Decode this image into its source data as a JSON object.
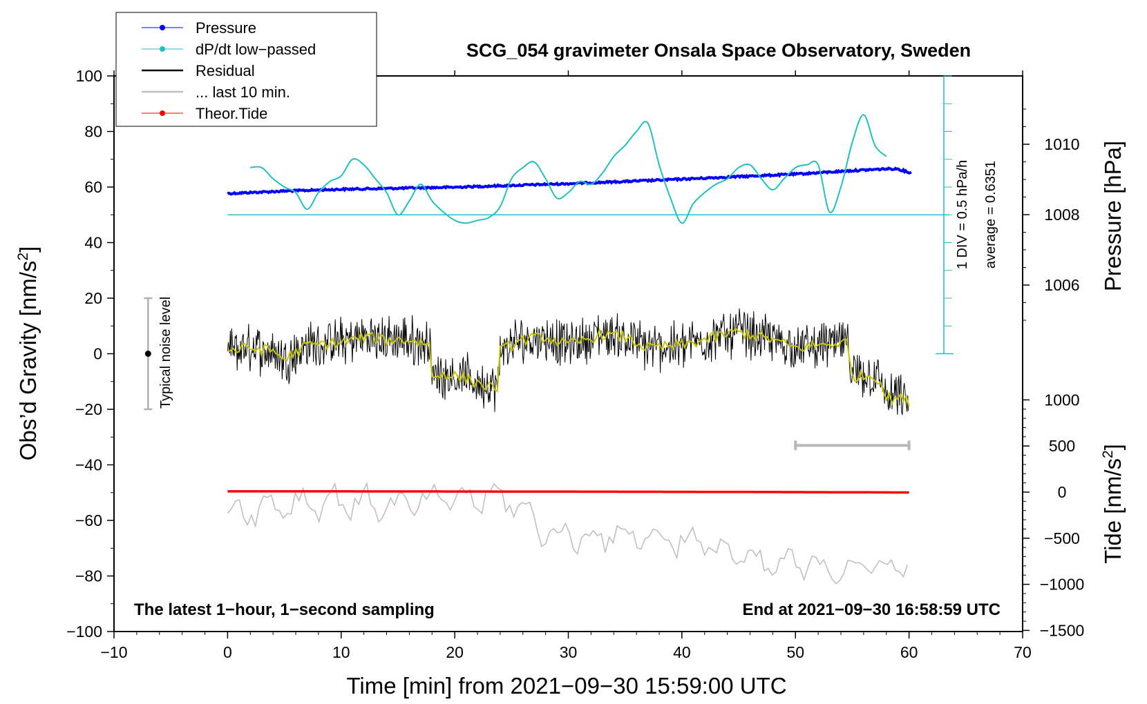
{
  "chart_data": {
    "type": "line",
    "title": "SCG_054 gravimeter Onsala Space Observatory, Sweden",
    "xlabel": "Time [min] from 2021−09−30 15:59:00 UTC",
    "ylabel_left": "Obs’d Gravity [nm/s",
    "ylabel_left_sup": "2",
    "ylabel_left_close": "]",
    "ylabel_pressure": "Pressure [hPa]",
    "ylabel_tide": "Tide [nm/s",
    "ylabel_tide_sup": "2",
    "ylabel_tide_close": "]",
    "xlim": [
      -10,
      70
    ],
    "ylim": [
      -100,
      100
    ],
    "x_ticks": [
      {
        "v": -10,
        "label": "−10"
      },
      {
        "v": 0,
        "label": "0"
      },
      {
        "v": 10,
        "label": "10"
      },
      {
        "v": 20,
        "label": "20"
      },
      {
        "v": 30,
        "label": "30"
      },
      {
        "v": 40,
        "label": "40"
      },
      {
        "v": 50,
        "label": "50"
      },
      {
        "v": 60,
        "label": "60"
      },
      {
        "v": 70,
        "label": "70"
      }
    ],
    "y_ticks": [
      {
        "v": 100,
        "label": "100"
      },
      {
        "v": 80,
        "label": "80"
      },
      {
        "v": 60,
        "label": "60"
      },
      {
        "v": 40,
        "label": "40"
      },
      {
        "v": 20,
        "label": "20"
      },
      {
        "v": 0,
        "label": "0"
      },
      {
        "v": -20,
        "label": "−20"
      },
      {
        "v": -40,
        "label": "−40"
      },
      {
        "v": -60,
        "label": "−60"
      },
      {
        "v": -80,
        "label": "−80"
      },
      {
        "v": -100,
        "label": "−100"
      }
    ],
    "pressure_axis": {
      "ticks": [
        {
          "v": 1010,
          "label": "1010"
        },
        {
          "v": 1008,
          "label": "1008"
        },
        {
          "v": 1006,
          "label": "1006"
        }
      ]
    },
    "tide_axis": {
      "ticks": [
        {
          "v": 1000,
          "label": "1000"
        },
        {
          "v": 500,
          "label": "500"
        },
        {
          "v": 0,
          "label": "0"
        },
        {
          "v": -500,
          "label": "−500"
        },
        {
          "v": -1000,
          "label": "−1000"
        },
        {
          "v": -1500,
          "label": "−1500"
        }
      ]
    },
    "legend": [
      {
        "label": "Pressure",
        "color": "#0000ff",
        "marker": true
      },
      {
        "label": "dP/dt low−passed",
        "color": "#00c0c0",
        "marker": true
      },
      {
        "label": "Residual",
        "color": "#000000",
        "marker": false
      },
      {
        "label": "... last 10 min.",
        "color": "#c0c0c0",
        "marker": false
      },
      {
        "label": "Theor.Tide",
        "color": "#ff0000",
        "marker": true
      }
    ],
    "dpdt_scale_label": "1 DIV = 0.5 hPa/h",
    "dpdt_average_label": "average = 0.6351",
    "dpdt_zero_level": 50,
    "noise_label": "Typical noise level",
    "noise_bar": {
      "x": -7,
      "center": 0,
      "half_range": 20
    },
    "note_left": "The latest 1−hour, 1−second sampling",
    "note_right": "End at 2021−09−30 16:58:59 UTC",
    "window_bar": {
      "x_start": 50,
      "x_end": 60,
      "y": -33
    },
    "series": [
      {
        "name": "Pressure",
        "color": "#0000ff",
        "axis": "pressure_hPa",
        "x": [
          0,
          5,
          10,
          20,
          30,
          38,
          45,
          50,
          55,
          58,
          59,
          60
        ],
        "values": [
          1008.6,
          1008.67,
          1008.72,
          1008.78,
          1008.88,
          1008.98,
          1009.08,
          1009.15,
          1009.25,
          1009.3,
          1009.3,
          1009.2
        ]
      },
      {
        "name": "dP/dt low-passed",
        "color": "#00c0c0",
        "axis": "gravity_plot_units",
        "x": [
          2,
          3,
          4,
          5,
          6,
          7,
          8,
          9,
          10,
          11,
          12,
          13,
          14,
          15,
          16,
          17,
          18,
          19,
          20,
          21,
          22,
          23,
          24,
          25,
          26,
          27,
          28,
          29,
          30,
          31,
          32,
          33,
          34,
          35,
          36,
          37,
          38,
          39,
          40,
          41,
          42,
          43,
          44,
          45,
          46,
          47,
          48,
          49,
          50,
          51,
          52,
          53,
          54,
          55,
          56,
          57,
          58
        ],
        "values": [
          67,
          67,
          63,
          60,
          58,
          52,
          58,
          62,
          64,
          70,
          68,
          63,
          58,
          50,
          55,
          61,
          55,
          51,
          48,
          47,
          48,
          49,
          53,
          63,
          67,
          69,
          63,
          56,
          58,
          62,
          61,
          65,
          71,
          75,
          80,
          83,
          68,
          56,
          47,
          54,
          58,
          61,
          63,
          67,
          68,
          63,
          59,
          63,
          67,
          68,
          68,
          51,
          60,
          76,
          86,
          75,
          71
        ]
      },
      {
        "name": "Residual",
        "color": "#000000",
        "axis": "gravity_nm_s2",
        "x": [
          0,
          2,
          4,
          5,
          7,
          10,
          12,
          14,
          16,
          17,
          17.9,
          18,
          19,
          21,
          23,
          23.9,
          24,
          26,
          28,
          30,
          33,
          35,
          37,
          40,
          43,
          45,
          48,
          50,
          52,
          54,
          54.5,
          55,
          57,
          57.5,
          58,
          59,
          60
        ],
        "values": [
          1,
          2,
          1,
          -2,
          3,
          4,
          6,
          5,
          5,
          4,
          4,
          -9,
          -7,
          -9,
          -12,
          -12,
          1,
          5,
          6,
          3,
          7,
          6,
          2,
          3,
          6,
          8,
          5,
          2,
          3,
          4,
          4,
          -8,
          -8,
          -10,
          -16,
          -16,
          -17
        ]
      },
      {
        "name": "... last 10 min.",
        "color": "#c0c0c0",
        "axis": "gravity_plot_units",
        "x": [
          0,
          5,
          10,
          15,
          20,
          25,
          26,
          28,
          30,
          35,
          40,
          45,
          46,
          50,
          55,
          60
        ],
        "values": [
          -57,
          -54,
          -53,
          -55,
          -52,
          -52,
          -57,
          -64,
          -66,
          -65,
          -67,
          -72,
          -76,
          -76,
          -77,
          -76
        ]
      },
      {
        "name": "Theor.Tide",
        "color": "#ff0000",
        "axis": "tide_nm_s2",
        "x": [
          0,
          10,
          20,
          30,
          40,
          50,
          60
        ],
        "values": [
          8,
          8,
          7,
          5,
          3,
          0,
          -4
        ]
      }
    ]
  }
}
